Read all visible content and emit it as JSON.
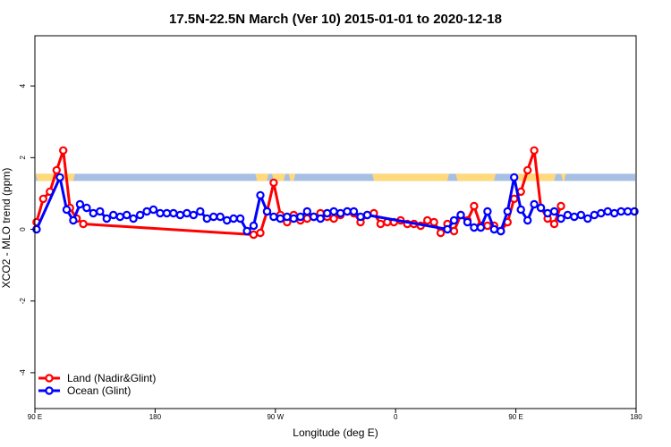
{
  "chart_data": {
    "type": "line",
    "title": "17.5N-22.5N March (Ver 10)   2015-01-01 to 2020-12-18",
    "xlabel": "Longitude (deg E)",
    "ylabel": "XCO2 - MLO trend (ppm)",
    "xlim": [
      0,
      360
    ],
    "ylim": [
      -5,
      5.4
    ],
    "xticks": [
      {
        "value": 0,
        "label": "90 E"
      },
      {
        "value": 72,
        "label": "180"
      },
      {
        "value": 144,
        "label": "90 W"
      },
      {
        "value": 216,
        "label": "0"
      },
      {
        "value": 288,
        "label": "90 E"
      },
      {
        "value": 360,
        "label": "180"
      }
    ],
    "yticks": [
      {
        "value": -4,
        "label": "-4"
      },
      {
        "value": -2,
        "label": "-2"
      },
      {
        "value": 0,
        "label": "0"
      },
      {
        "value": 2,
        "label": "2"
      },
      {
        "value": 4,
        "label": "4"
      }
    ],
    "legend": {
      "position": "bottom-left"
    },
    "land_mask": {
      "y_range": [
        1.35,
        1.55
      ],
      "ocean_color": "#A7BFE3",
      "land_color": "#FFD97A",
      "land_segments": [
        [
          0,
          24
        ],
        [
          132,
          140
        ],
        [
          142,
          150
        ],
        [
          152,
          156
        ],
        [
          202,
          248
        ],
        [
          252,
          276
        ],
        [
          287,
          312
        ],
        [
          315,
          318
        ]
      ]
    },
    "series": [
      {
        "name": "Land (Nadir&Glint)",
        "color": "#FF0000",
        "x": [
          1,
          5,
          9,
          13,
          17,
          21,
          25,
          29,
          131,
          135,
          139,
          143,
          147,
          151,
          155,
          159,
          163,
          167,
          171,
          175,
          179,
          183,
          187,
          191,
          195,
          199,
          203,
          207,
          211,
          215,
          219,
          223,
          227,
          231,
          235,
          239,
          243,
          247,
          251,
          255,
          259,
          263,
          267,
          271,
          275,
          279,
          283,
          287,
          291,
          295,
          299,
          303,
          307,
          311,
          315
        ],
        "y": [
          0.2,
          0.85,
          1.05,
          1.65,
          2.2,
          0.6,
          0.3,
          0.15,
          -0.15,
          -0.1,
          0.5,
          1.3,
          0.4,
          0.2,
          0.4,
          0.25,
          0.3,
          0.35,
          0.45,
          0.35,
          0.3,
          0.4,
          0.5,
          0.45,
          0.2,
          0.4,
          0.45,
          0.15,
          0.2,
          0.2,
          0.25,
          0.15,
          0.15,
          0.1,
          0.25,
          0.2,
          -0.1,
          0.15,
          -0.05,
          0.4,
          0.25,
          0.65,
          0.1,
          0.1,
          0.1,
          -0.05,
          0.2,
          0.85,
          1.05,
          1.65,
          2.2,
          0.6,
          0.3,
          0.15,
          0.65
        ]
      },
      {
        "name": "Ocean (Glint)",
        "color": "#0000FF",
        "x": [
          1,
          15,
          19,
          23,
          27,
          31,
          35,
          39,
          43,
          47,
          51,
          55,
          59,
          63,
          67,
          71,
          75,
          79,
          83,
          87,
          91,
          95,
          99,
          103,
          107,
          111,
          115,
          119,
          123,
          127,
          131,
          135,
          139,
          143,
          147,
          151,
          155,
          159,
          163,
          167,
          171,
          175,
          179,
          183,
          187,
          191,
          195,
          199,
          247,
          251,
          255,
          259,
          263,
          267,
          271,
          275,
          279,
          283,
          287,
          291,
          295,
          299,
          303,
          307,
          311,
          315,
          319,
          323,
          327,
          331,
          335,
          339,
          343,
          347,
          351,
          355,
          359
        ],
        "y": [
          0.0,
          1.45,
          0.55,
          0.25,
          0.7,
          0.6,
          0.45,
          0.5,
          0.3,
          0.4,
          0.35,
          0.4,
          0.3,
          0.4,
          0.5,
          0.55,
          0.45,
          0.45,
          0.45,
          0.4,
          0.45,
          0.4,
          0.5,
          0.3,
          0.35,
          0.35,
          0.25,
          0.3,
          0.3,
          -0.05,
          0.1,
          0.95,
          0.5,
          0.35,
          0.3,
          0.35,
          0.3,
          0.35,
          0.5,
          0.35,
          0.3,
          0.45,
          0.5,
          0.45,
          0.5,
          0.5,
          0.35,
          0.4,
          0.0,
          0.25,
          0.4,
          0.2,
          0.05,
          0.05,
          0.5,
          0.0,
          -0.05,
          0.5,
          1.45,
          0.55,
          0.25,
          0.7,
          0.6,
          0.45,
          0.5,
          0.3,
          0.4,
          0.35,
          0.4,
          0.3,
          0.4,
          0.45,
          0.5,
          0.45,
          0.5,
          0.5,
          0.5
        ]
      }
    ]
  }
}
